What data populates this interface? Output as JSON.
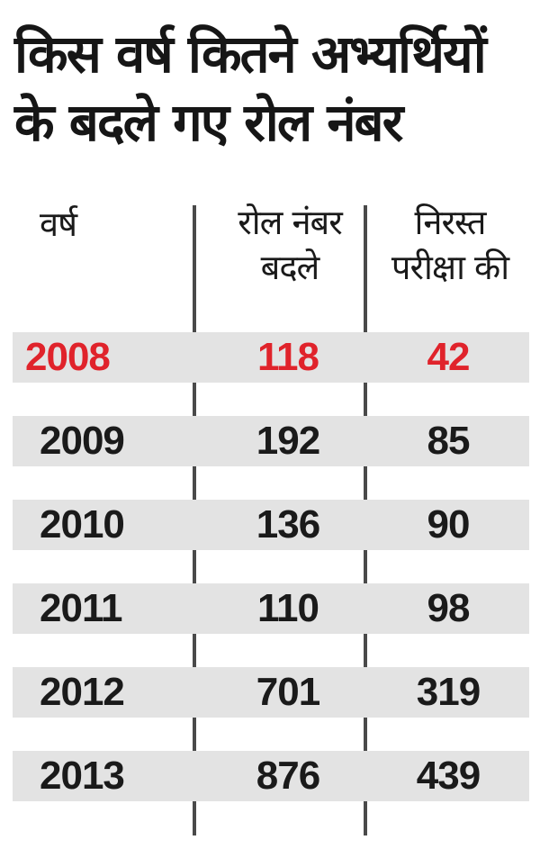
{
  "title": {
    "line1": "किस वर्ष कितने अभ्यर्थियों",
    "line2": "के बदले गए रोल नंबर"
  },
  "headers": {
    "year": "वर्ष",
    "changed_line1": "रोल नंबर",
    "changed_line2": "बदले",
    "cancelled_line1": "निरस्त",
    "cancelled_line2": "परीक्षा की"
  },
  "colors": {
    "highlight": "#e0232b",
    "row_shade": "#e3e3e3",
    "text": "#1a1a1a"
  },
  "chart_data": {
    "type": "table",
    "title": "किस वर्ष कितने अभ्यर्थियों के बदले गए रोल नंबर",
    "columns": [
      "वर्ष",
      "रोल नंबर बदले",
      "निरस्त परीक्षा की"
    ],
    "rows": [
      {
        "year": "2008",
        "changed": "118",
        "cancelled": "42"
      },
      {
        "year": "2009",
        "changed": "192",
        "cancelled": "85"
      },
      {
        "year": "2010",
        "changed": "136",
        "cancelled": "90"
      },
      {
        "year": "2011",
        "changed": "110",
        "cancelled": "98"
      },
      {
        "year": "2012",
        "changed": "701",
        "cancelled": "319"
      },
      {
        "year": "2013",
        "changed": "876",
        "cancelled": "439"
      }
    ]
  }
}
